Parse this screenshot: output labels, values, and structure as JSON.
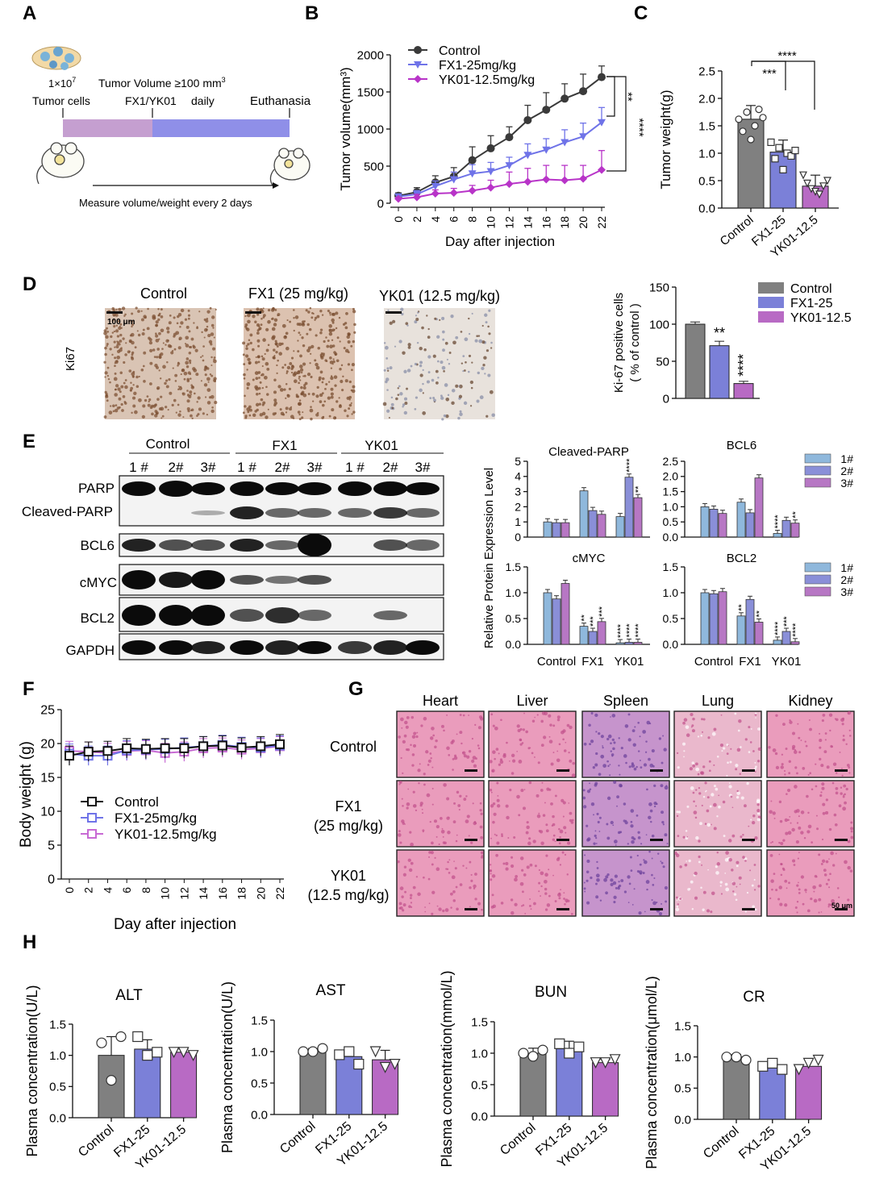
{
  "colors": {
    "control": "#808080",
    "fx1": "#7b80d8",
    "yk01": "#b86ac4",
    "ctrl_line": "#3a3a3a",
    "fx1_line": "#6f73e8",
    "yk01_line": "#b834c8",
    "s1": "#8fb8dc",
    "s2": "#8a8fd8",
    "s3": "#b777c4",
    "he_pink": "#e07ca8",
    "he_purple": "#a070b8",
    "ki_brown": "#8a5a3a"
  },
  "panel_letters": [
    "A",
    "B",
    "C",
    "D",
    "E",
    "F",
    "G",
    "H"
  ],
  "panelA": {
    "cells_label": "1×10",
    "cells_exp": "7",
    "tumor_cells": "Tumor cells",
    "tv_label": "Tumor Volume ≥100 mm",
    "tv_exp": "3",
    "treat": "FX1/YK01",
    "daily": "daily",
    "euth": "Euthanasia",
    "measure": "Measure volume/weight every 2 days"
  },
  "panelD": {
    "ki67": "Ki67",
    "scale": "100 μm",
    "titles": [
      "Control",
      "FX1 (25 mg/kg)",
      "YK01 (12.5 mg/kg)"
    ]
  },
  "panelE": {
    "groups": [
      "Control",
      "FX1",
      "YK01"
    ],
    "lanes": [
      "1 #",
      "2#",
      "3#",
      "1 #",
      "2#",
      "3#",
      "1 #",
      "2#",
      "3#"
    ],
    "proteins": [
      "PARP",
      "Cleaved-PARP",
      "BCL6",
      "cMYC",
      "BCL2",
      "GAPDH"
    ],
    "ylabel": "Relative Protein Expression Level",
    "legend": [
      "1#",
      "2#",
      "3#"
    ]
  },
  "panelG": {
    "organs": [
      "Heart",
      "Liver",
      "Spleen",
      "Lung",
      "Kidney"
    ],
    "rows": [
      [
        "Control"
      ],
      [
        "FX1",
        "(25 mg/kg)"
      ],
      [
        "YK01",
        "(12.5 mg/kg)"
      ]
    ],
    "scale": "50 μm"
  },
  "chart_data": [
    {
      "id": "B",
      "type": "line",
      "xlabel": "Day after injection",
      "ylabel": "Tumor volume(mm³)",
      "x": [
        0,
        2,
        4,
        6,
        8,
        10,
        12,
        14,
        16,
        18,
        20,
        22
      ],
      "xlim": [
        0,
        22
      ],
      "ylim": [
        0,
        2000
      ],
      "yticks": [
        0,
        500,
        1000,
        1500,
        2000
      ],
      "legend_position": "top-left",
      "series": [
        {
          "name": "Control",
          "values": [
            100,
            150,
            280,
            360,
            580,
            740,
            890,
            1120,
            1260,
            1410,
            1510,
            1700
          ],
          "err": [
            40,
            60,
            90,
            120,
            180,
            170,
            140,
            200,
            230,
            200,
            230,
            150
          ]
        },
        {
          "name": "FX1-25mg/kg",
          "values": [
            90,
            120,
            230,
            320,
            400,
            430,
            510,
            650,
            720,
            820,
            900,
            1090
          ],
          "err": [
            30,
            50,
            70,
            100,
            120,
            120,
            110,
            150,
            150,
            170,
            180,
            200
          ]
        },
        {
          "name": "YK01-12.5mg/kg",
          "values": [
            60,
            80,
            130,
            140,
            170,
            210,
            260,
            290,
            320,
            310,
            330,
            450
          ],
          "err": [
            20,
            40,
            50,
            60,
            70,
            100,
            160,
            180,
            190,
            200,
            180,
            260
          ]
        }
      ],
      "annotations": [
        "**",
        "****"
      ]
    },
    {
      "id": "C",
      "type": "bar",
      "ylabel": "Tumor weight(g)",
      "categories": [
        "Control",
        "FX1-25",
        "YK01-12.5"
      ],
      "values": [
        1.62,
        1.02,
        0.4
      ],
      "err": [
        0.25,
        0.22,
        0.2
      ],
      "ylim": [
        0,
        2.5
      ],
      "yticks": [
        0,
        0.5,
        1.0,
        1.5,
        2.0,
        2.5
      ],
      "annotations": [
        "***",
        "****"
      ]
    },
    {
      "id": "D",
      "type": "bar",
      "ylabel": "Ki-67 positive cells",
      "ylabel2": "( % of control )",
      "categories": [
        "Control",
        "FX1-25",
        "YK01-12.5"
      ],
      "values": [
        100,
        71,
        20
      ],
      "err": [
        3,
        6,
        3
      ],
      "ylim": [
        0,
        150
      ],
      "yticks": [
        0,
        50,
        100,
        150
      ],
      "annotations": [
        "",
        "**",
        "****"
      ],
      "legend": [
        "Control",
        "FX1-25",
        "YK01-12.5"
      ]
    },
    {
      "id": "E1",
      "type": "bar",
      "title": "Cleaved-PARP",
      "categories": [
        "Control",
        "FX1",
        "YK01"
      ],
      "series": [
        {
          "name": "1#",
          "values": [
            1.0,
            3.05,
            1.35
          ]
        },
        {
          "name": "2#",
          "values": [
            0.95,
            1.75,
            3.95
          ]
        },
        {
          "name": "3#",
          "values": [
            0.95,
            1.5,
            2.6
          ]
        }
      ],
      "ylim": [
        0,
        5
      ],
      "yticks": [
        0,
        1,
        2,
        3,
        4,
        5
      ],
      "annotations": [
        [
          "",
          ""
        ],
        [
          "",
          ""
        ],
        [
          "",
          "****"
        ],
        [
          "",
          "**"
        ]
      ]
    },
    {
      "id": "E2",
      "type": "bar",
      "title": "BCL6",
      "categories": [
        "Control",
        "FX1",
        "YK01"
      ],
      "series": [
        {
          "name": "1#",
          "values": [
            1.0,
            1.15,
            0.12
          ]
        },
        {
          "name": "2#",
          "values": [
            0.92,
            0.8,
            0.55
          ]
        },
        {
          "name": "3#",
          "values": [
            0.78,
            1.95,
            0.46
          ]
        }
      ],
      "ylim": [
        0,
        2.5
      ],
      "yticks": [
        0,
        0.5,
        1.0,
        1.5,
        2.0,
        2.5
      ],
      "annotations": [
        "****",
        "**"
      ]
    },
    {
      "id": "E3",
      "type": "bar",
      "title": "cMYC",
      "categories": [
        "Control",
        "FX1",
        "YK01"
      ],
      "series": [
        {
          "name": "1#",
          "values": [
            1.0,
            0.35,
            0.03
          ]
        },
        {
          "name": "2#",
          "values": [
            0.88,
            0.25,
            0.04
          ]
        },
        {
          "name": "3#",
          "values": [
            1.18,
            0.44,
            0.04
          ]
        }
      ],
      "ylim": [
        0,
        1.5
      ],
      "yticks": [
        0,
        0.5,
        1.0,
        1.5
      ],
      "annotations": [
        "**",
        "***",
        "***",
        "****",
        "****",
        "****"
      ]
    },
    {
      "id": "E4",
      "type": "bar",
      "title": "BCL2",
      "categories": [
        "Control",
        "FX1",
        "YK01"
      ],
      "series": [
        {
          "name": "1#",
          "values": [
            1.0,
            0.55,
            0.08
          ]
        },
        {
          "name": "2#",
          "values": [
            0.98,
            0.87,
            0.25
          ]
        },
        {
          "name": "3#",
          "values": [
            1.02,
            0.43,
            0.05
          ]
        }
      ],
      "ylim": [
        0,
        1.5
      ],
      "yticks": [
        0,
        0.5,
        1.0,
        1.5
      ],
      "annotations": [
        "**",
        "**",
        "****",
        "***",
        "****"
      ]
    },
    {
      "id": "F",
      "type": "line",
      "xlabel": "Day after injection",
      "ylabel": "Body weight (g)",
      "x": [
        0,
        2,
        4,
        6,
        8,
        10,
        12,
        14,
        16,
        18,
        20,
        22
      ],
      "xlim": [
        0,
        22
      ],
      "ylim": [
        0,
        25
      ],
      "yticks": [
        0,
        5,
        10,
        15,
        20,
        25
      ],
      "legend_position": "left",
      "series": [
        {
          "name": "Control",
          "values": [
            18.2,
            18.8,
            18.9,
            19.3,
            19.2,
            19.3,
            19.3,
            19.6,
            19.7,
            19.4,
            19.6,
            19.9
          ]
        },
        {
          "name": "FX1-25mg/kg",
          "values": [
            18.5,
            18.2,
            18.2,
            19.0,
            19.1,
            19.2,
            19.4,
            19.6,
            19.8,
            19.5,
            19.4,
            19.7
          ]
        },
        {
          "name": "YK01-12.5mg/kg",
          "values": [
            18.9,
            18.8,
            18.6,
            18.9,
            19.0,
            18.6,
            18.8,
            19.3,
            19.4,
            19.1,
            19.3,
            19.6
          ]
        }
      ]
    },
    {
      "id": "H1",
      "type": "bar",
      "title": "ALT",
      "ylabel": "Plasma concentration(U/L)",
      "categories": [
        "Control",
        "FX1-25",
        "YK01-12.5"
      ],
      "values": [
        1.0,
        1.1,
        1.05
      ],
      "err": [
        0.3,
        0.15,
        0.05
      ],
      "ylim": [
        0,
        1.5
      ],
      "yticks": [
        0,
        0.5,
        1.0,
        1.5
      ]
    },
    {
      "id": "H2",
      "type": "bar",
      "title": "AST",
      "ylabel": "Plasma concentration(U/L)",
      "categories": [
        "Control",
        "FX1-25",
        "YK01-12.5"
      ],
      "values": [
        1.0,
        0.92,
        0.87
      ],
      "err": [
        0.05,
        0.1,
        0.15
      ],
      "ylim": [
        0,
        1.5
      ],
      "yticks": [
        0,
        0.5,
        1.0,
        1.5
      ]
    },
    {
      "id": "H3",
      "type": "bar",
      "title": "BUN",
      "ylabel": "Plasma concentration(mmol/L)",
      "categories": [
        "Control",
        "FX1-25",
        "YK01-12.5"
      ],
      "values": [
        1.0,
        1.07,
        0.85
      ],
      "err": [
        0.08,
        0.12,
        0.05
      ],
      "ylim": [
        0,
        1.5
      ],
      "yticks": [
        0,
        0.5,
        1.0,
        1.5
      ]
    },
    {
      "id": "H4",
      "type": "bar",
      "title": "CR",
      "ylabel": "Plasma concentration(μmol/L)",
      "categories": [
        "Control",
        "FX1-25",
        "YK01-12.5"
      ],
      "values": [
        1.0,
        0.85,
        0.85
      ],
      "err": [
        0.04,
        0.1,
        0.12
      ],
      "ylim": [
        0,
        1.5
      ],
      "yticks": [
        0,
        0.5,
        1.0,
        1.5
      ]
    }
  ]
}
